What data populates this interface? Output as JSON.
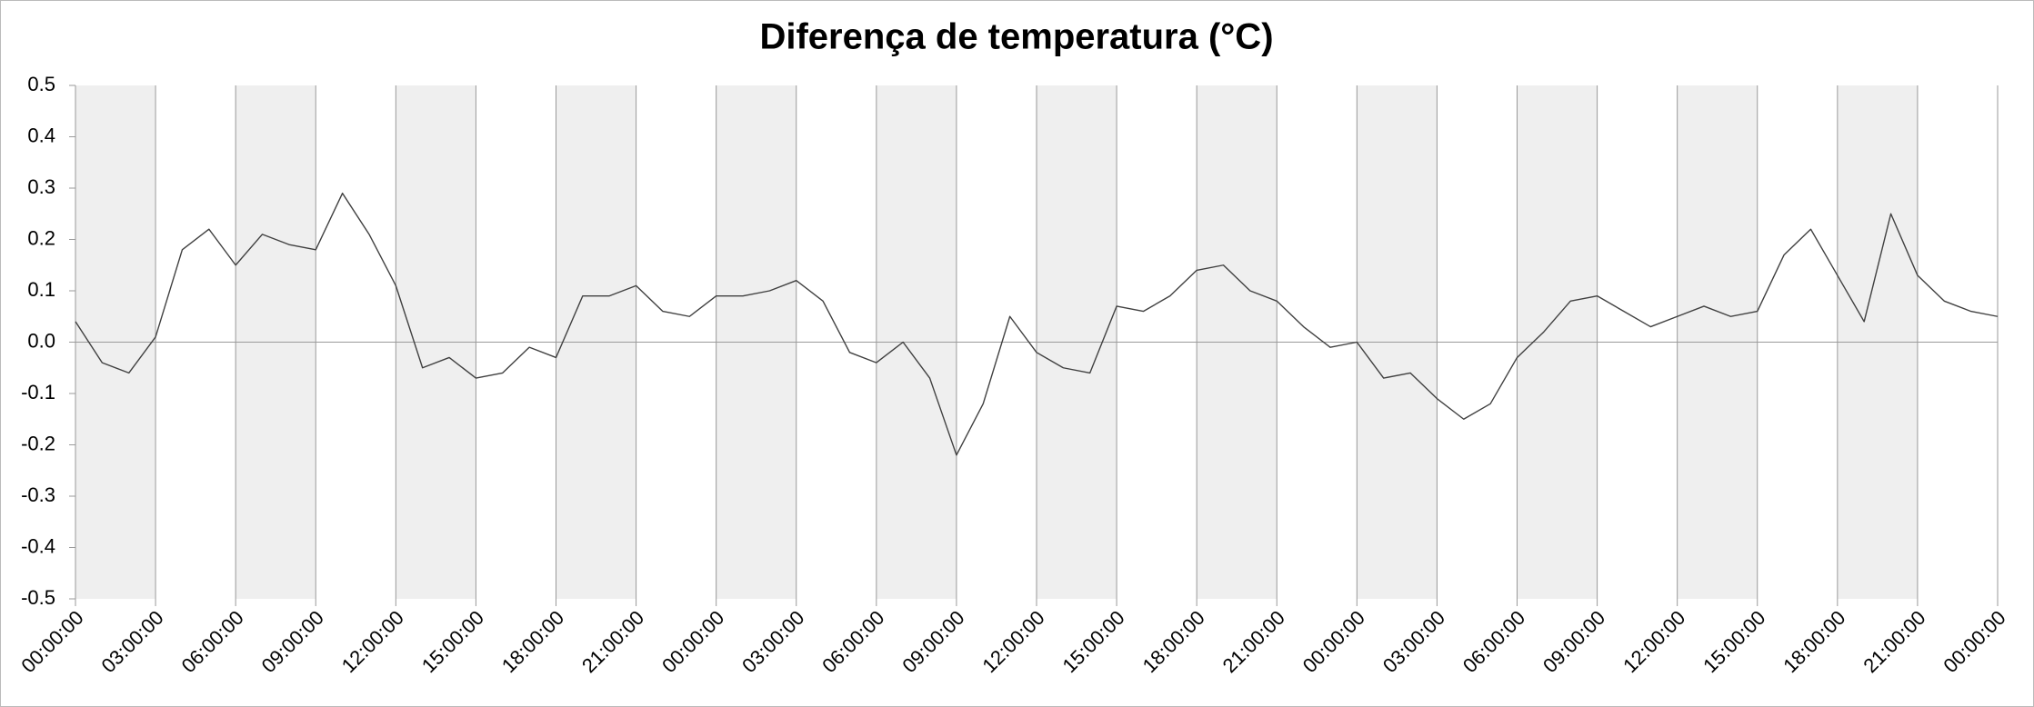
{
  "chart_data": {
    "type": "line",
    "title": "Diferença de temperatura (°C)",
    "x": [
      0,
      1,
      2,
      3,
      4,
      5,
      6,
      7,
      8,
      9,
      10,
      11,
      12,
      13,
      14,
      15,
      16,
      17,
      18,
      19,
      20,
      21,
      22,
      23,
      24,
      25,
      26,
      27,
      28,
      29,
      30,
      31,
      32,
      33,
      34,
      35,
      36,
      37,
      38,
      39,
      40,
      41,
      42,
      43,
      44,
      45,
      46,
      47,
      48,
      49,
      50,
      51,
      52,
      53,
      54,
      55,
      56,
      57,
      58,
      59,
      60,
      61,
      62,
      63,
      64,
      65,
      66,
      67,
      68,
      69,
      70,
      71,
      72
    ],
    "series": [
      {
        "color": "#404040",
        "values": [
          0.04,
          -0.04,
          -0.06,
          0.01,
          0.18,
          0.22,
          0.15,
          0.21,
          0.19,
          0.18,
          0.29,
          0.21,
          0.11,
          -0.05,
          -0.03,
          -0.07,
          -0.06,
          -0.01,
          -0.03,
          0.09,
          0.09,
          0.11,
          0.06,
          0.05,
          0.09,
          0.09,
          0.1,
          0.12,
          0.08,
          -0.02,
          -0.04,
          0.0,
          -0.07,
          -0.22,
          -0.12,
          0.05,
          -0.02,
          -0.05,
          -0.06,
          0.07,
          0.06,
          0.09,
          0.14,
          0.15,
          0.1,
          0.08,
          0.03,
          -0.01,
          0.0,
          -0.07,
          -0.06,
          -0.11,
          -0.15,
          -0.12,
          -0.03,
          0.02,
          0.08,
          0.09,
          0.06,
          0.03,
          0.05,
          0.07,
          0.05,
          0.06,
          0.17,
          0.22,
          0.13,
          0.04,
          0.25,
          0.13,
          0.08,
          0.06,
          0.05
        ]
      }
    ],
    "xlim": [
      0,
      72
    ],
    "xticks": [
      {
        "value": 0,
        "label": "00:00:00"
      },
      {
        "value": 3,
        "label": "03:00:00"
      },
      {
        "value": 6,
        "label": "06:00:00"
      },
      {
        "value": 9,
        "label": "09:00:00"
      },
      {
        "value": 12,
        "label": "12:00:00"
      },
      {
        "value": 15,
        "label": "15:00:00"
      },
      {
        "value": 18,
        "label": "18:00:00"
      },
      {
        "value": 21,
        "label": "21:00:00"
      },
      {
        "value": 24,
        "label": "00:00:00"
      },
      {
        "value": 27,
        "label": "03:00:00"
      },
      {
        "value": 30,
        "label": "06:00:00"
      },
      {
        "value": 33,
        "label": "09:00:00"
      },
      {
        "value": 36,
        "label": "12:00:00"
      },
      {
        "value": 39,
        "label": "15:00:00"
      },
      {
        "value": 42,
        "label": "18:00:00"
      },
      {
        "value": 45,
        "label": "21:00:00"
      },
      {
        "value": 48,
        "label": "00:00:00"
      },
      {
        "value": 51,
        "label": "03:00:00"
      },
      {
        "value": 54,
        "label": "06:00:00"
      },
      {
        "value": 57,
        "label": "09:00:00"
      },
      {
        "value": 60,
        "label": "12:00:00"
      },
      {
        "value": 63,
        "label": "15:00:00"
      },
      {
        "value": 66,
        "label": "18:00:00"
      },
      {
        "value": 69,
        "label": "21:00:00"
      },
      {
        "value": 72,
        "label": "00:00:00"
      }
    ],
    "ylim": [
      -0.5,
      0.5
    ],
    "yticks": [
      0.5,
      0.4,
      0.3,
      0.2,
      0.1,
      {
        "value": 0,
        "label": "0.0"
      },
      -0.1,
      -0.2,
      -0.3,
      -0.4,
      -0.5
    ]
  }
}
